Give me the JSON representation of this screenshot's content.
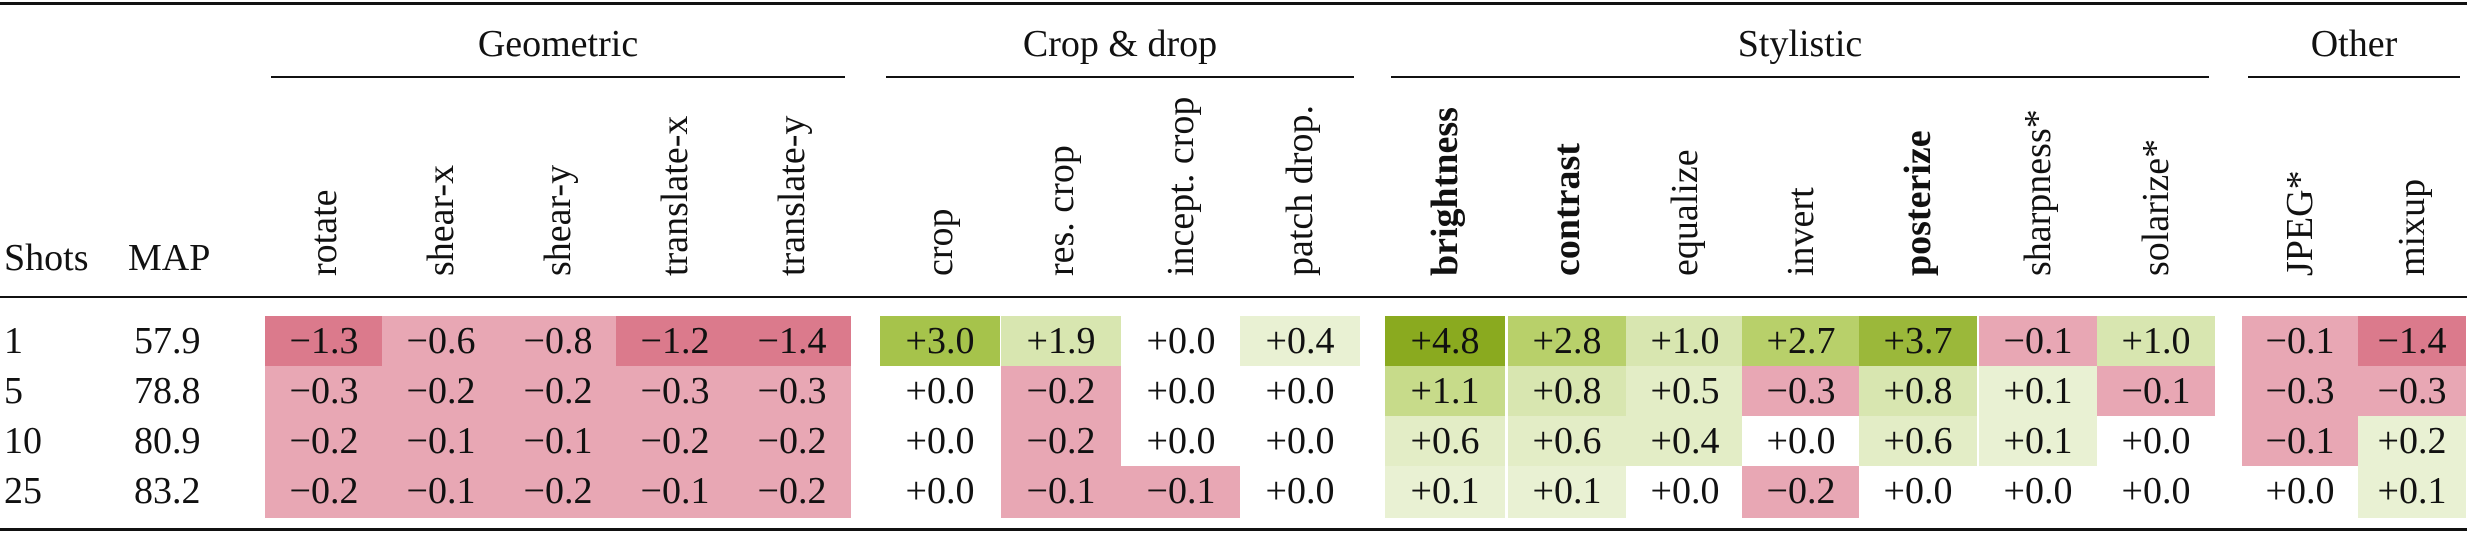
{
  "header": {
    "shots_label": "Shots",
    "map_label": "MAP"
  },
  "groups": [
    {
      "name": "Geometric"
    },
    {
      "name": "Crop & drop"
    },
    {
      "name": "Stylistic"
    },
    {
      "name": "Other"
    }
  ],
  "columns": [
    {
      "label": "rotate",
      "bold": false,
      "group": 0
    },
    {
      "label": "shear-x",
      "bold": false,
      "group": 0
    },
    {
      "label": "shear-y",
      "bold": false,
      "group": 0
    },
    {
      "label": "translate-x",
      "bold": false,
      "group": 0
    },
    {
      "label": "translate-y",
      "bold": false,
      "group": 0
    },
    {
      "label": "crop",
      "bold": false,
      "group": 1
    },
    {
      "label": "res. crop",
      "bold": false,
      "group": 1
    },
    {
      "label": "incept. crop",
      "bold": false,
      "group": 1
    },
    {
      "label": "patch drop.",
      "bold": false,
      "group": 1
    },
    {
      "label": "brightness",
      "bold": true,
      "group": 2
    },
    {
      "label": "contrast",
      "bold": true,
      "group": 2
    },
    {
      "label": "equalize",
      "bold": false,
      "group": 2
    },
    {
      "label": "invert",
      "bold": false,
      "group": 2
    },
    {
      "label": "posterize",
      "bold": true,
      "group": 2
    },
    {
      "label": "sharpness*",
      "bold": false,
      "group": 2
    },
    {
      "label": "solarize*",
      "bold": false,
      "group": 2
    },
    {
      "label": "JPEG*",
      "bold": false,
      "group": 3
    },
    {
      "label": "mixup",
      "bold": false,
      "group": 3
    }
  ],
  "rows": [
    {
      "shots": "1",
      "map": "57.9",
      "values": [
        "−1.3",
        "−0.6",
        "−0.8",
        "−1.2",
        "−1.4",
        "+3.0",
        "+1.9",
        "+0.0",
        "+0.4",
        "+4.8",
        "+2.8",
        "+1.0",
        "+2.7",
        "+3.7",
        "−0.1",
        "+1.0",
        "−0.1",
        "−1.4"
      ],
      "colors": [
        "#db7a8c",
        "#e8a7b4",
        "#e8a7b4",
        "#db7a8c",
        "#db7a8c",
        "#a6c34b",
        "#d8e6b0",
        "#ffffff",
        "#e9f1d3",
        "#8aaa1f",
        "#b8d06a",
        "#d8e6b0",
        "#b8d06a",
        "#9bb83a",
        "#e8a7b4",
        "#d8e6b0",
        "#e8a7b4",
        "#db7a8c"
      ]
    },
    {
      "shots": "5",
      "map": "78.8",
      "values": [
        "−0.3",
        "−0.2",
        "−0.2",
        "−0.3",
        "−0.3",
        "+0.0",
        "−0.2",
        "+0.0",
        "+0.0",
        "+1.1",
        "+0.8",
        "+0.5",
        "−0.3",
        "+0.8",
        "+0.1",
        "−0.1",
        "−0.3",
        "−0.3"
      ],
      "colors": [
        "#e8a7b4",
        "#e8a7b4",
        "#e8a7b4",
        "#e8a7b4",
        "#e8a7b4",
        "#ffffff",
        "#e8a7b4",
        "#ffffff",
        "#ffffff",
        "#c7db8a",
        "#d8e6b0",
        "#e3edc6",
        "#e8a7b4",
        "#d8e6b0",
        "#e9f1d3",
        "#e8a7b4",
        "#e8a7b4",
        "#e8a7b4"
      ]
    },
    {
      "shots": "10",
      "map": "80.9",
      "values": [
        "−0.2",
        "−0.1",
        "−0.1",
        "−0.2",
        "−0.2",
        "+0.0",
        "−0.2",
        "+0.0",
        "+0.0",
        "+0.6",
        "+0.6",
        "+0.4",
        "+0.0",
        "+0.6",
        "+0.1",
        "+0.0",
        "−0.1",
        "+0.2"
      ],
      "colors": [
        "#e8a7b4",
        "#e8a7b4",
        "#e8a7b4",
        "#e8a7b4",
        "#e8a7b4",
        "#ffffff",
        "#e8a7b4",
        "#ffffff",
        "#ffffff",
        "#e3edc6",
        "#e3edc6",
        "#e3edc6",
        "#ffffff",
        "#e3edc6",
        "#e9f1d3",
        "#ffffff",
        "#e8a7b4",
        "#e9f1d3"
      ]
    },
    {
      "shots": "25",
      "map": "83.2",
      "values": [
        "−0.2",
        "−0.1",
        "−0.2",
        "−0.1",
        "−0.2",
        "+0.0",
        "−0.1",
        "−0.1",
        "+0.0",
        "+0.1",
        "+0.1",
        "+0.0",
        "−0.2",
        "+0.0",
        "+0.0",
        "+0.0",
        "+0.0",
        "+0.1"
      ],
      "colors": [
        "#e8a7b4",
        "#e8a7b4",
        "#e8a7b4",
        "#e8a7b4",
        "#e8a7b4",
        "#ffffff",
        "#e8a7b4",
        "#e8a7b4",
        "#ffffff",
        "#e9f1d3",
        "#e9f1d3",
        "#ffffff",
        "#e8a7b4",
        "#ffffff",
        "#ffffff",
        "#ffffff",
        "#ffffff",
        "#e9f1d3"
      ]
    }
  ]
}
